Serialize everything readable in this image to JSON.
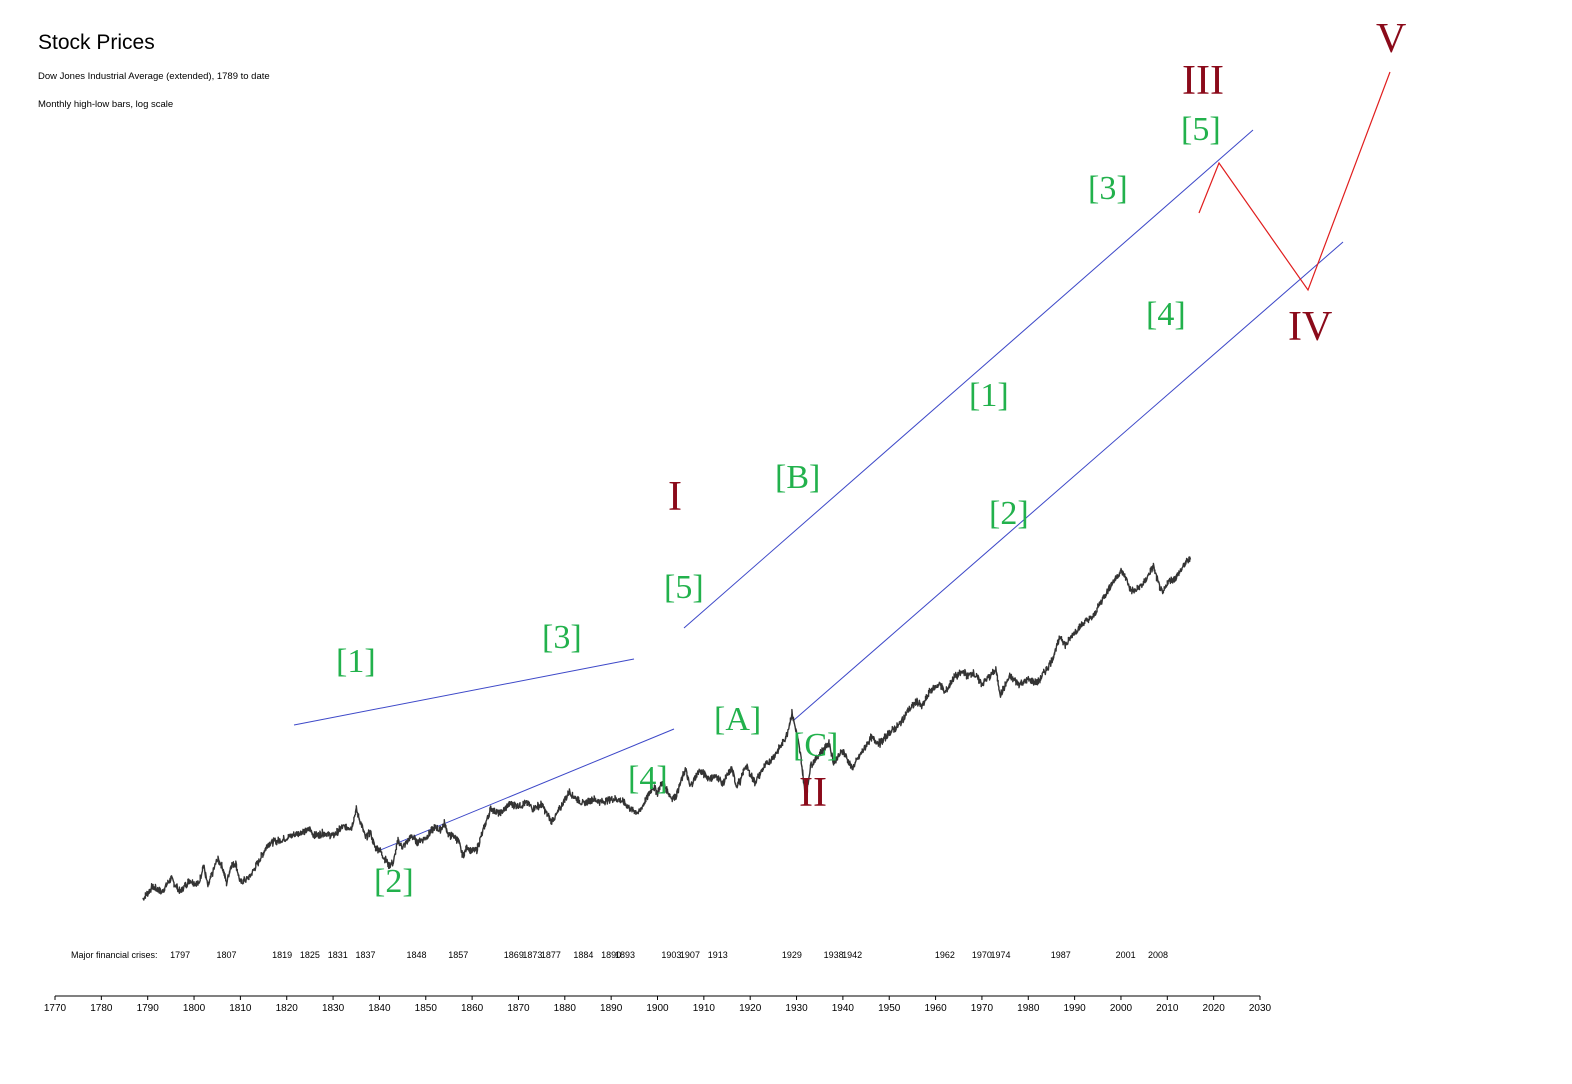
{
  "chart_data": {
    "type": "line",
    "title": "Stock Prices",
    "subtitle1": "Dow Jones Industrial Average (extended), 1789 to date",
    "subtitle2": "Monthly high-low bars, log scale",
    "x_ticks": [
      1770,
      1780,
      1790,
      1800,
      1810,
      1820,
      1830,
      1840,
      1850,
      1860,
      1870,
      1880,
      1890,
      1900,
      1910,
      1920,
      1930,
      1940,
      1950,
      1960,
      1970,
      1980,
      1990,
      2000,
      2010,
      2020,
      2030
    ],
    "xlim": [
      1770,
      2030
    ],
    "crises_label": "Major financial crises:",
    "crises": [
      1797,
      1807,
      1819,
      1825,
      1831,
      1837,
      1848,
      1857,
      1869,
      1873,
      1877,
      1884,
      1890,
      1893,
      1903,
      1907,
      1913,
      1929,
      1938,
      1942,
      1962,
      1970,
      1974,
      1987,
      2001,
      2008
    ],
    "series": [
      {
        "values": [
          [
            1789,
            0.8
          ],
          [
            1791,
            1.1
          ],
          [
            1793,
            0.95
          ],
          [
            1795,
            1.35
          ],
          [
            1797,
            0.95
          ],
          [
            1799,
            1.3
          ],
          [
            1801,
            1.15
          ],
          [
            1802,
            1.9
          ],
          [
            1803,
            1.1
          ],
          [
            1805,
            2.2
          ],
          [
            1806,
            1.9
          ],
          [
            1807,
            1.2
          ],
          [
            1808,
            1.9
          ],
          [
            1809,
            2.0
          ],
          [
            1810,
            1.2
          ],
          [
            1812,
            1.4
          ],
          [
            1814,
            2.1
          ],
          [
            1816,
            3.3
          ],
          [
            1819,
            3.6
          ],
          [
            1822,
            4.2
          ],
          [
            1825,
            4.7
          ],
          [
            1826,
            4.0
          ],
          [
            1828,
            4.3
          ],
          [
            1830,
            4.0
          ],
          [
            1832,
            5.0
          ],
          [
            1834,
            5.0
          ],
          [
            1835,
            7.8
          ],
          [
            1836,
            5.5
          ],
          [
            1837,
            3.8
          ],
          [
            1838,
            4.4
          ],
          [
            1839,
            3.0
          ],
          [
            1840,
            2.8
          ],
          [
            1842,
            1.9
          ],
          [
            1843,
            2.0
          ],
          [
            1844,
            3.5
          ],
          [
            1845,
            3.0
          ],
          [
            1847,
            4.0
          ],
          [
            1848,
            3.4
          ],
          [
            1850,
            3.8
          ],
          [
            1852,
            5.0
          ],
          [
            1853,
            4.6
          ],
          [
            1854,
            5.5
          ],
          [
            1855,
            4.0
          ],
          [
            1856,
            4.0
          ],
          [
            1857,
            3.5
          ],
          [
            1858,
            2.4
          ],
          [
            1859,
            3.0
          ],
          [
            1860,
            2.7
          ],
          [
            1861,
            2.8
          ],
          [
            1862,
            4.0
          ],
          [
            1864,
            8.0
          ],
          [
            1866,
            7.0
          ],
          [
            1868,
            9.0
          ],
          [
            1870,
            8.6
          ],
          [
            1872,
            9.2
          ],
          [
            1873,
            8.0
          ],
          [
            1875,
            8.9
          ],
          [
            1877,
            5.8
          ],
          [
            1878,
            6.5
          ],
          [
            1880,
            10.0
          ],
          [
            1881,
            12.2
          ],
          [
            1882,
            10.8
          ],
          [
            1884,
            9.0
          ],
          [
            1886,
            10.2
          ],
          [
            1888,
            9.4
          ],
          [
            1890,
            10.3
          ],
          [
            1892,
            10.0
          ],
          [
            1894,
            8.0
          ],
          [
            1896,
            7.2
          ],
          [
            1897,
            9.0
          ],
          [
            1899,
            14.0
          ],
          [
            1900,
            12.0
          ],
          [
            1901,
            15.5
          ],
          [
            1902,
            13.0
          ],
          [
            1903,
            10.5
          ],
          [
            1904,
            11.0
          ],
          [
            1906,
            22.0
          ],
          [
            1907,
            14.0
          ],
          [
            1909,
            21.0
          ],
          [
            1911,
            17.5
          ],
          [
            1913,
            18.0
          ],
          [
            1914,
            15.0
          ],
          [
            1916,
            22.0
          ],
          [
            1917,
            14.5
          ],
          [
            1918,
            16.5
          ],
          [
            1919,
            24.0
          ],
          [
            1921,
            15.5
          ],
          [
            1923,
            23.0
          ],
          [
            1925,
            30.0
          ],
          [
            1927,
            42.0
          ],
          [
            1928,
            55.0
          ],
          [
            1929,
            90.0
          ],
          [
            1930,
            55.0
          ],
          [
            1931,
            28.0
          ],
          [
            1932,
            9.5
          ],
          [
            1933,
            24.0
          ],
          [
            1935,
            32.0
          ],
          [
            1937,
            43.0
          ],
          [
            1938,
            26.0
          ],
          [
            1940,
            35.0
          ],
          [
            1942,
            22.0
          ],
          [
            1944,
            33.0
          ],
          [
            1946,
            48.0
          ],
          [
            1948,
            42.0
          ],
          [
            1950,
            55.0
          ],
          [
            1952,
            66.0
          ],
          [
            1954,
            95.0
          ],
          [
            1956,
            122.0
          ],
          [
            1957,
            105.0
          ],
          [
            1959,
            165.0
          ],
          [
            1961,
            190.0
          ],
          [
            1962,
            150.0
          ],
          [
            1964,
            225.0
          ],
          [
            1966,
            260.0
          ],
          [
            1967,
            230.0
          ],
          [
            1968,
            255.0
          ],
          [
            1970,
            190.0
          ],
          [
            1973,
            270.0
          ],
          [
            1974,
            145.0
          ],
          [
            1976,
            230.0
          ],
          [
            1978,
            190.0
          ],
          [
            1980,
            210.0
          ],
          [
            1982,
            195.0
          ],
          [
            1985,
            340.0
          ],
          [
            1987,
            650.0
          ],
          [
            1988,
            500.0
          ],
          [
            1990,
            720.0
          ],
          [
            1992,
            900.0
          ],
          [
            1994,
            1050.0
          ],
          [
            1996,
            1650.0
          ],
          [
            1998,
            2450.0
          ],
          [
            2000,
            3350.0
          ],
          [
            2001,
            2900.0
          ],
          [
            2002,
            2100.0
          ],
          [
            2003,
            2000.0
          ],
          [
            2005,
            2500.0
          ],
          [
            2007,
            3800.0
          ],
          [
            2008,
            2500.0
          ],
          [
            2009,
            1850.0
          ],
          [
            2010,
            2500.0
          ],
          [
            2012,
            2900.0
          ],
          [
            2014,
            4200.0
          ],
          [
            2015,
            4500.0
          ]
        ]
      }
    ],
    "y_scale": "log",
    "waves_minor": [
      "[1]",
      "[2]",
      "[3]",
      "[4]",
      "[5]",
      "[A]",
      "[B]",
      "[C]",
      "[1]",
      "[2]",
      "[3]",
      "[4]",
      "[5]"
    ],
    "waves_major": [
      "I",
      "II",
      "III",
      "IV",
      "V"
    ],
    "channel_lines": "blue",
    "projection_path": "red",
    "colors": {
      "minor": "#22b14c",
      "major": "#8b0a1a",
      "channel": "#3d48c8",
      "projection": "#e01e1e",
      "price": "#333333"
    }
  }
}
